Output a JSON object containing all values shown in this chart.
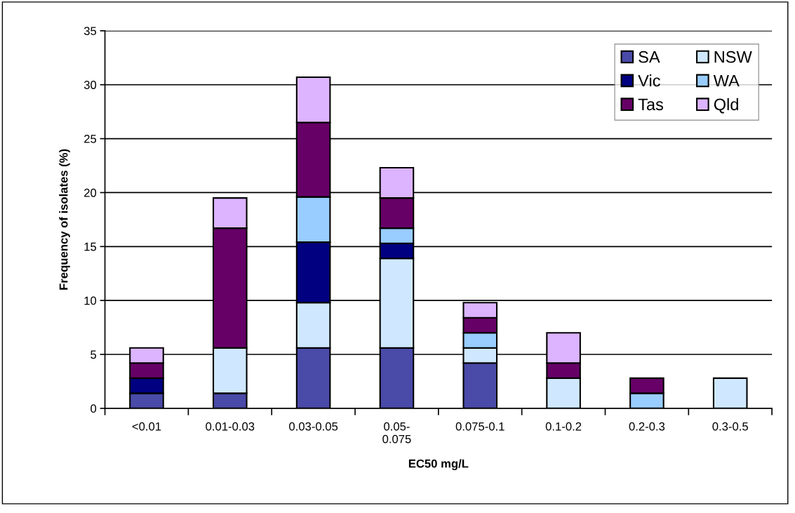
{
  "chart_data": {
    "type": "bar",
    "stacked": true,
    "xlabel": "EC50 mg/L",
    "ylabel": "Frequency of isolates (%)",
    "categories": [
      "<0.01",
      "0.01-0.03",
      "0.03-0.05",
      "0.05-0.075",
      "0.075-0.1",
      "0.1-0.2",
      "0.2-0.3",
      "0.3-0.5"
    ],
    "series": [
      {
        "name": "SA",
        "color": "#4a4aa8",
        "values": [
          1.4,
          1.4,
          5.6,
          5.6,
          4.2,
          0,
          0,
          0
        ]
      },
      {
        "name": "NSW",
        "color": "#cfe8ff",
        "values": [
          0,
          4.2,
          4.2,
          8.3,
          1.4,
          2.8,
          0,
          2.8
        ]
      },
      {
        "name": "Vic",
        "color": "#000080",
        "values": [
          1.4,
          0,
          5.6,
          1.4,
          0,
          0,
          0,
          0
        ]
      },
      {
        "name": "WA",
        "color": "#99ccff",
        "values": [
          0,
          0,
          4.2,
          1.4,
          1.4,
          0,
          1.4,
          0
        ]
      },
      {
        "name": "Tas",
        "color": "#660066",
        "values": [
          1.4,
          11.1,
          6.9,
          2.8,
          1.4,
          1.4,
          1.4,
          0
        ]
      },
      {
        "name": "Qld",
        "color": "#dcb4ff",
        "values": [
          1.4,
          2.8,
          4.2,
          2.8,
          1.4,
          2.8,
          0,
          0
        ]
      }
    ],
    "ylim": [
      0,
      35
    ],
    "yticks": [
      0,
      5,
      10,
      15,
      20,
      25,
      30,
      35
    ],
    "grid": "y",
    "legend": "top right"
  }
}
